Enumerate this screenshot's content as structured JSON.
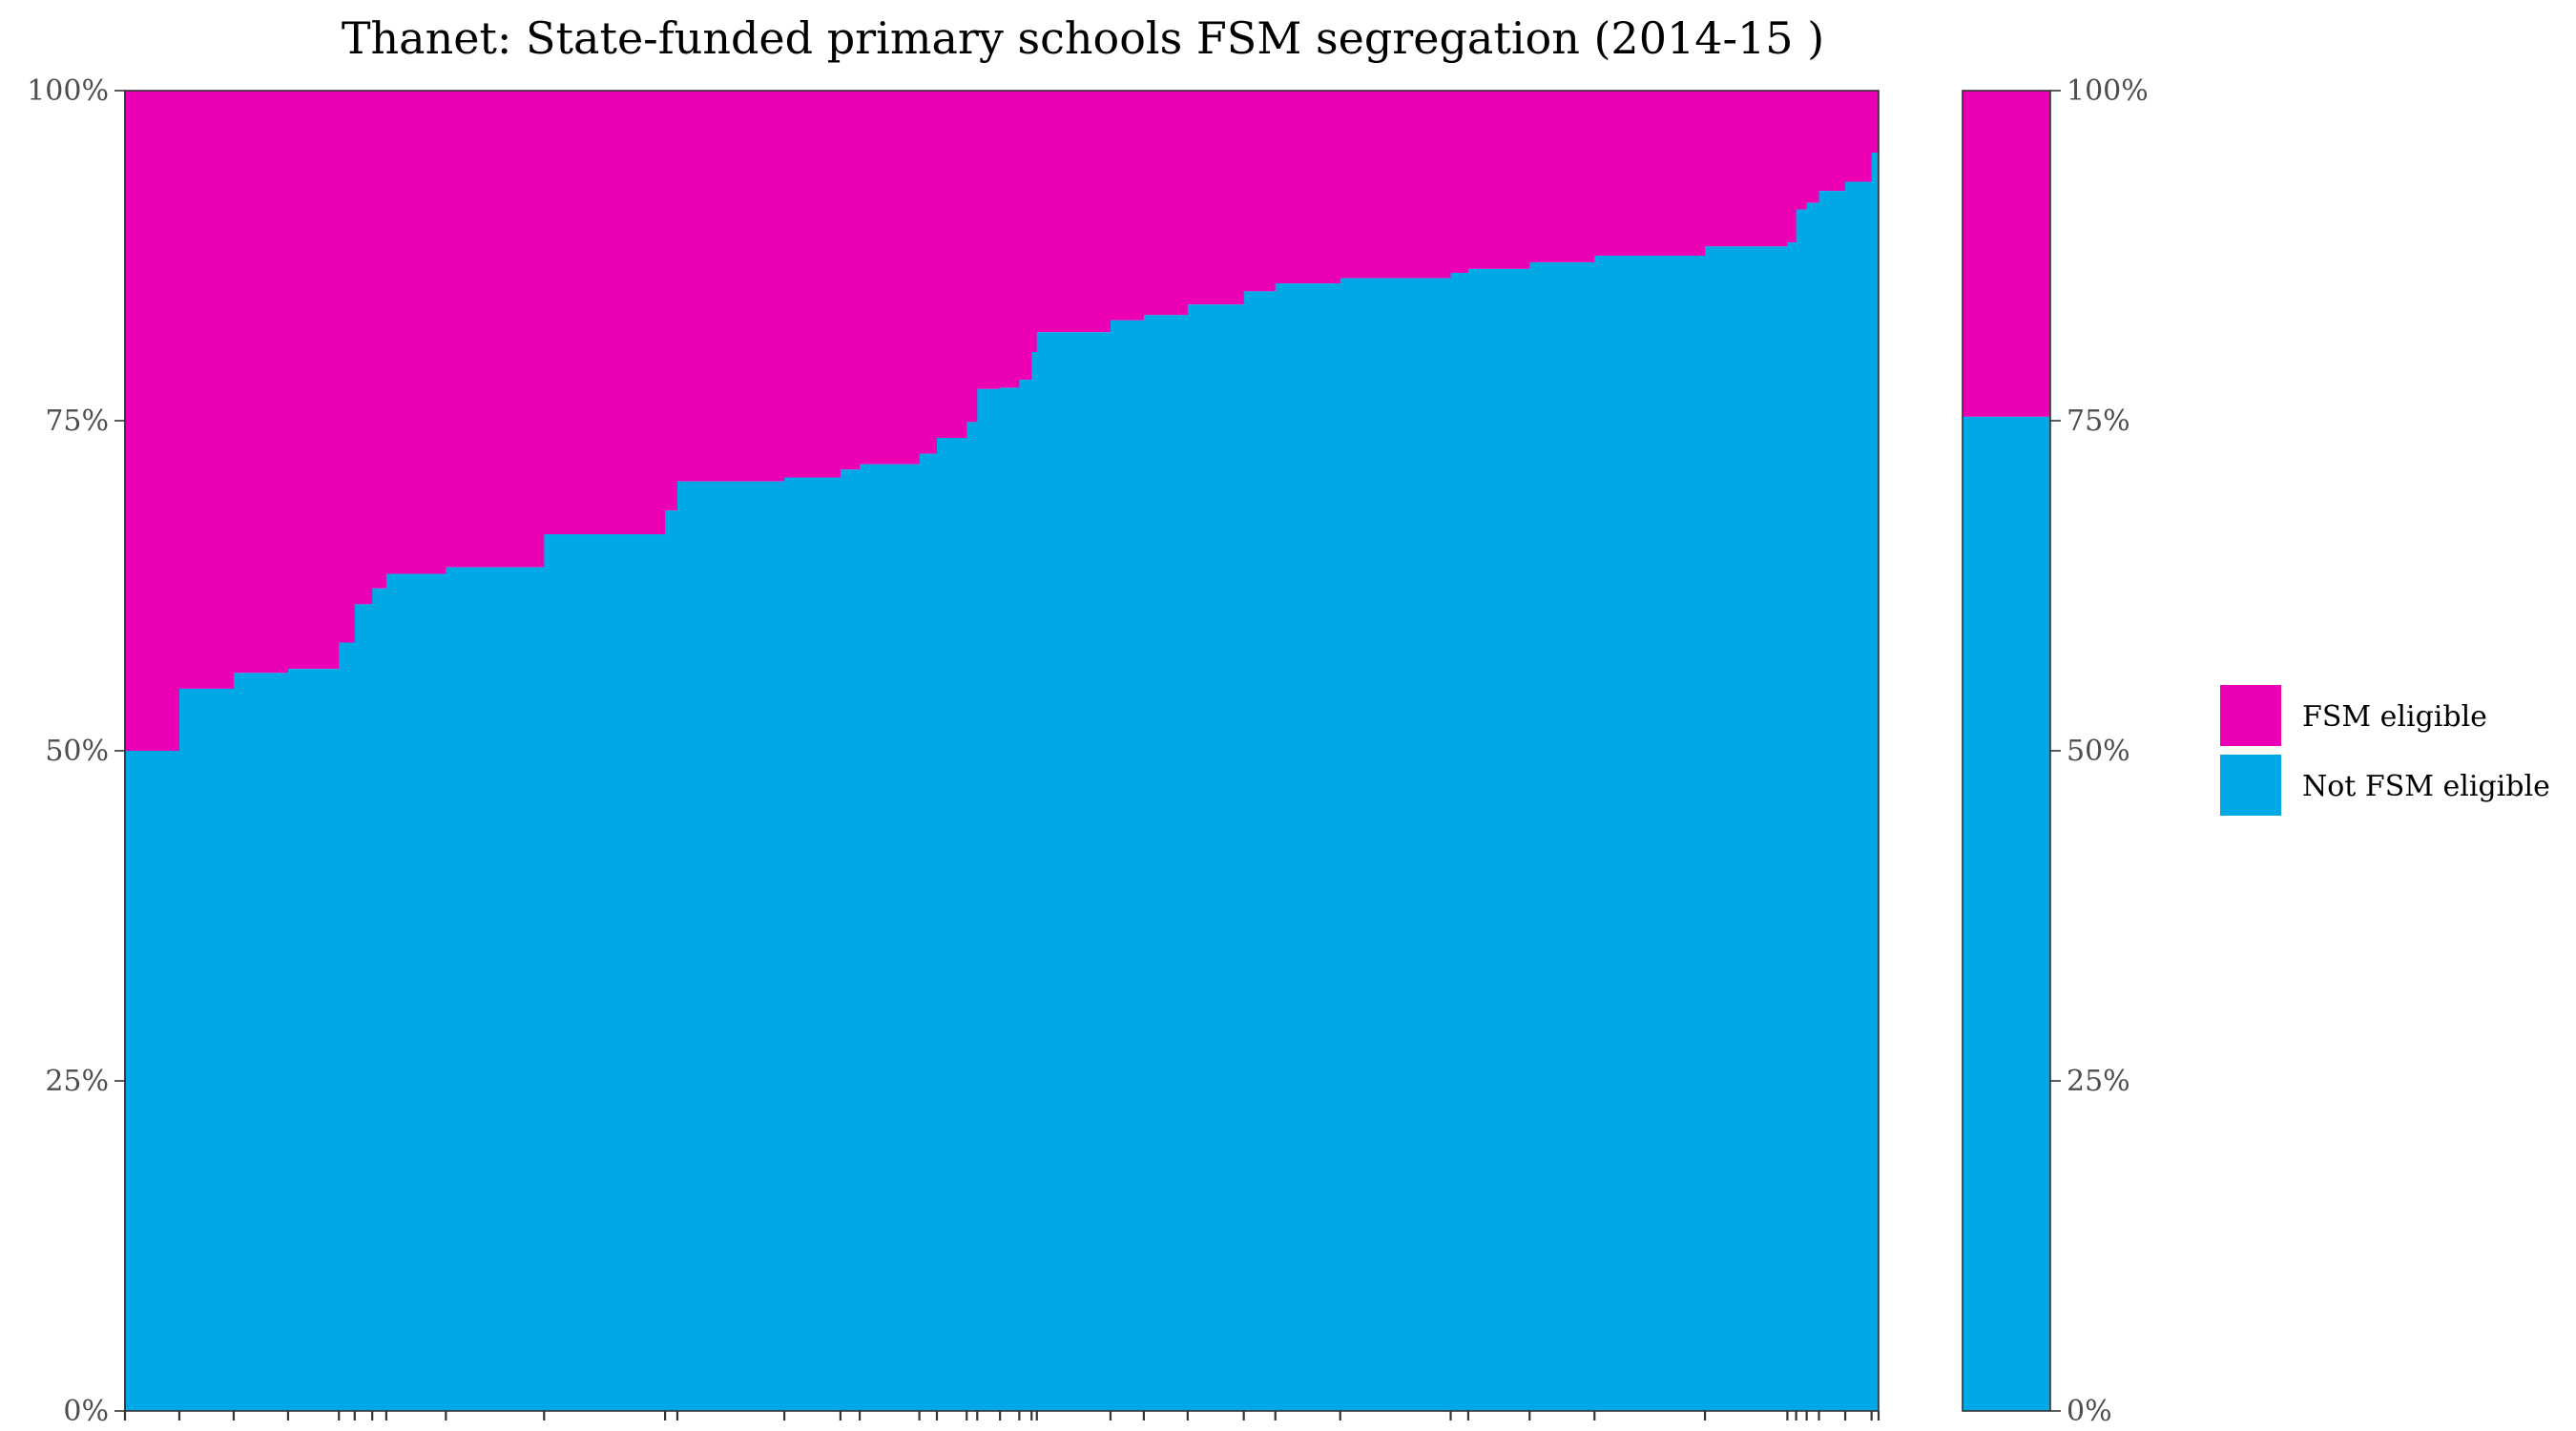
{
  "chart_data": {
    "type": "bar",
    "title": "Thanet: State-funded primary schools FSM segregation (2014-15 )",
    "xlabel": "",
    "ylabel": "",
    "ylim": [
      0,
      1
    ],
    "y_ticks": [
      "0%",
      "25%",
      "50%",
      "75%",
      "100%"
    ],
    "grid": false,
    "legend_position": "right",
    "colors": {
      "FSM eligible": "#EC00B4",
      "Not FSM eligible": "#00A8E6"
    },
    "series": [
      {
        "name": "FSM eligible"
      },
      {
        "name": "Not FSM eligible"
      }
    ],
    "schools_not_fsm_share": [
      {
        "start": 0.0,
        "end": 0.031,
        "value": 0.5
      },
      {
        "start": 0.031,
        "end": 0.062,
        "value": 0.547
      },
      {
        "start": 0.062,
        "end": 0.093,
        "value": 0.559
      },
      {
        "start": 0.093,
        "end": 0.122,
        "value": 0.562
      },
      {
        "start": 0.122,
        "end": 0.131,
        "value": 0.582
      },
      {
        "start": 0.131,
        "end": 0.141,
        "value": 0.611
      },
      {
        "start": 0.141,
        "end": 0.149,
        "value": 0.623
      },
      {
        "start": 0.149,
        "end": 0.183,
        "value": 0.634
      },
      {
        "start": 0.183,
        "end": 0.239,
        "value": 0.639
      },
      {
        "start": 0.239,
        "end": 0.308,
        "value": 0.664
      },
      {
        "start": 0.308,
        "end": 0.315,
        "value": 0.682
      },
      {
        "start": 0.315,
        "end": 0.376,
        "value": 0.704
      },
      {
        "start": 0.376,
        "end": 0.408,
        "value": 0.707
      },
      {
        "start": 0.408,
        "end": 0.419,
        "value": 0.713
      },
      {
        "start": 0.419,
        "end": 0.453,
        "value": 0.717
      },
      {
        "start": 0.453,
        "end": 0.463,
        "value": 0.725
      },
      {
        "start": 0.463,
        "end": 0.48,
        "value": 0.737
      },
      {
        "start": 0.48,
        "end": 0.486,
        "value": 0.749
      },
      {
        "start": 0.486,
        "end": 0.499,
        "value": 0.774
      },
      {
        "start": 0.499,
        "end": 0.51,
        "value": 0.775
      },
      {
        "start": 0.51,
        "end": 0.517,
        "value": 0.781
      },
      {
        "start": 0.517,
        "end": 0.52,
        "value": 0.802
      },
      {
        "start": 0.52,
        "end": 0.562,
        "value": 0.817
      },
      {
        "start": 0.562,
        "end": 0.581,
        "value": 0.826
      },
      {
        "start": 0.581,
        "end": 0.606,
        "value": 0.83
      },
      {
        "start": 0.606,
        "end": 0.638,
        "value": 0.838
      },
      {
        "start": 0.638,
        "end": 0.656,
        "value": 0.848
      },
      {
        "start": 0.656,
        "end": 0.693,
        "value": 0.854
      },
      {
        "start": 0.693,
        "end": 0.756,
        "value": 0.858
      },
      {
        "start": 0.756,
        "end": 0.766,
        "value": 0.862
      },
      {
        "start": 0.766,
        "end": 0.801,
        "value": 0.865
      },
      {
        "start": 0.801,
        "end": 0.838,
        "value": 0.87
      },
      {
        "start": 0.838,
        "end": 0.901,
        "value": 0.875
      },
      {
        "start": 0.901,
        "end": 0.948,
        "value": 0.882
      },
      {
        "start": 0.948,
        "end": 0.953,
        "value": 0.885
      },
      {
        "start": 0.953,
        "end": 0.959,
        "value": 0.91
      },
      {
        "start": 0.959,
        "end": 0.966,
        "value": 0.915
      },
      {
        "start": 0.966,
        "end": 0.981,
        "value": 0.924
      },
      {
        "start": 0.981,
        "end": 0.996,
        "value": 0.931
      },
      {
        "start": 0.996,
        "end": 1.0,
        "value": 0.953
      }
    ],
    "overall_not_fsm_share": 0.753
  }
}
